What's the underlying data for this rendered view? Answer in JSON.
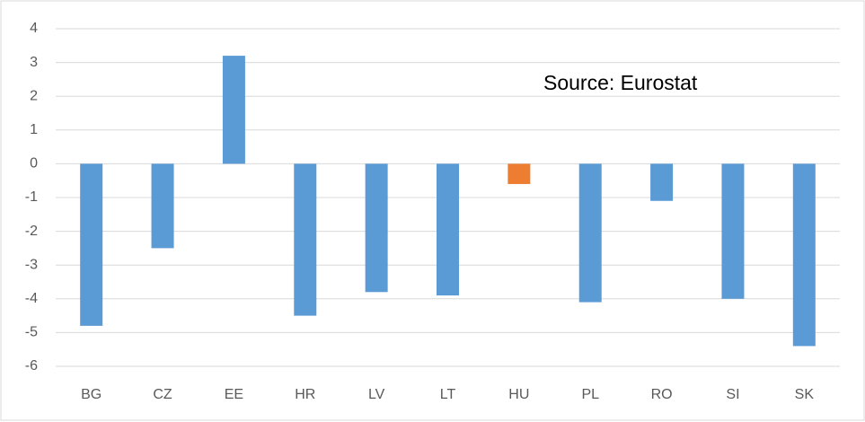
{
  "chart_data": {
    "type": "bar",
    "annotation": "Source: Eurostat",
    "categories": [
      "BG",
      "CZ",
      "EE",
      "HR",
      "LV",
      "LT",
      "HU",
      "PL",
      "RO",
      "SI",
      "SK"
    ],
    "values": [
      -4.8,
      -2.5,
      3.2,
      -4.5,
      -3.8,
      -3.9,
      -0.6,
      -4.1,
      -1.1,
      -4.0,
      -5.4
    ],
    "colors": [
      "#5b9bd5",
      "#5b9bd5",
      "#5b9bd5",
      "#5b9bd5",
      "#5b9bd5",
      "#5b9bd5",
      "#ed7d31",
      "#5b9bd5",
      "#5b9bd5",
      "#5b9bd5",
      "#5b9bd5"
    ],
    "ylim": [
      -6,
      4
    ],
    "yticks": [
      -6,
      -5,
      -4,
      -3,
      -2,
      -1,
      0,
      1,
      2,
      3,
      4
    ],
    "grid": true
  }
}
